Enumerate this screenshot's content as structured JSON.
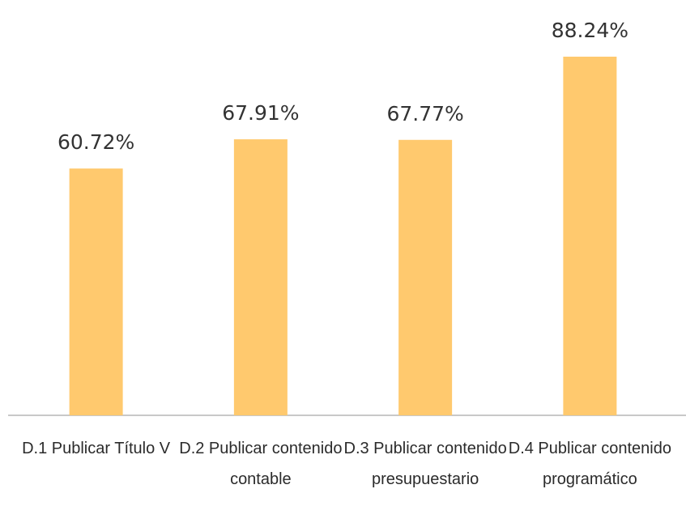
{
  "chart_data": {
    "type": "bar",
    "categories": [
      "D.1 Publicar Título V",
      "D.2 Publicar contenido contable",
      "D.3 Publicar contenido presupuestario",
      "D.4 Publicar contenido programático"
    ],
    "values": [
      60.72,
      67.91,
      67.77,
      88.24
    ],
    "value_labels": [
      "60.72%",
      "67.91%",
      "67.77%",
      "88.24%"
    ],
    "color": "#ffc96e"
  }
}
